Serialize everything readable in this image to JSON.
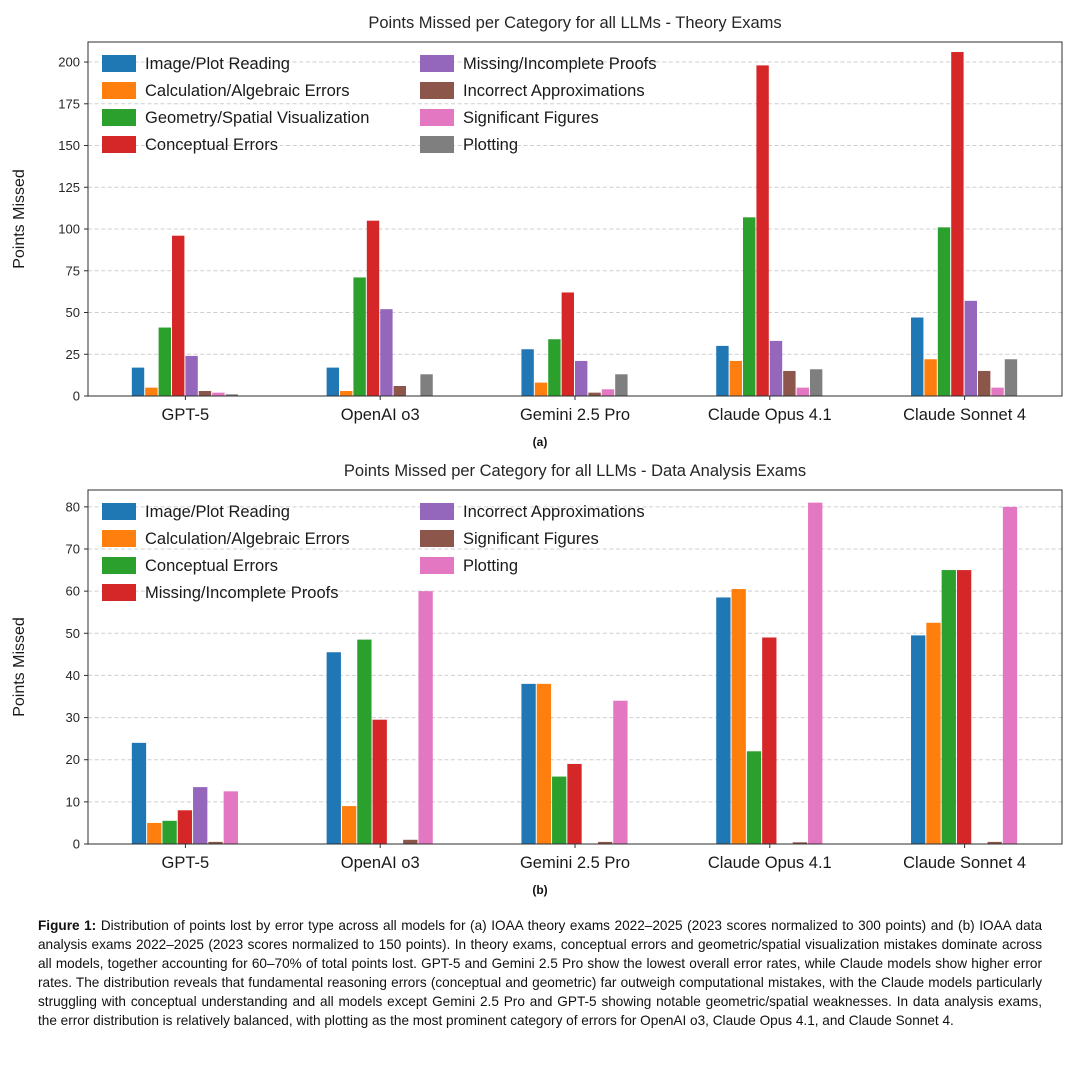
{
  "figure": {
    "caption_label": "Figure 1:",
    "caption_text": "Distribution of points lost by error type across all models for (a) IOAA theory exams 2022–2025 (2023 scores normalized to 300 points) and (b) IOAA data analysis exams 2022–2025 (2023 scores normalized to 150 points). In theory exams, conceptual errors and geometric/spatial visualization mistakes dominate across all models, together accounting for 60–70% of total points lost. GPT-5 and Gemini 2.5 Pro show the lowest overall error rates, while Claude models show higher error rates. The distribution reveals that fundamental reasoning errors (conceptual and geometric) far outweigh computational mistakes, with the Claude models particularly struggling with conceptual understanding and all models except Gemini 2.5 Pro and GPT-5 showing notable geometric/spatial weaknesses. In data analysis exams, the error distribution is relatively balanced, with plotting as the most prominent category of errors for OpenAI o3, Claude Opus 4.1, and Claude Sonnet 4.",
    "subfig_a": "(a)",
    "subfig_b": "(b)"
  },
  "chart_data": [
    {
      "id": "theory-exams",
      "type": "bar",
      "title": "Points Missed per Category for all LLMs - Theory Exams",
      "xlabel": "",
      "ylabel": "Points Missed",
      "ylim": [
        0,
        212
      ],
      "yticks": [
        0,
        25,
        50,
        75,
        100,
        125,
        150,
        175,
        200
      ],
      "grid": "dashed-horizontal",
      "legend_position": "upper-left",
      "legend_columns": 2,
      "categories": [
        "GPT-5",
        "OpenAI o3",
        "Gemini 2.5 Pro",
        "Claude Opus 4.1",
        "Claude Sonnet 4"
      ],
      "series": [
        {
          "name": "Image/Plot Reading",
          "color": "#1f77b4",
          "values": [
            17,
            17,
            28,
            30,
            47
          ]
        },
        {
          "name": "Calculation/Algebraic Errors",
          "color": "#ff7f0e",
          "values": [
            5,
            3,
            8,
            21,
            22
          ]
        },
        {
          "name": "Geometry/Spatial Visualization",
          "color": "#2ca02c",
          "values": [
            41,
            71,
            34,
            107,
            101
          ]
        },
        {
          "name": "Conceptual Errors",
          "color": "#d62728",
          "values": [
            96,
            105,
            62,
            198,
            206
          ]
        },
        {
          "name": "Missing/Incomplete Proofs",
          "color": "#9467bd",
          "values": [
            24,
            52,
            21,
            33,
            57
          ]
        },
        {
          "name": "Incorrect Approximations",
          "color": "#8c564b",
          "values": [
            3,
            6,
            2,
            15,
            15
          ]
        },
        {
          "name": "Significant Figures",
          "color": "#e377c2",
          "values": [
            2,
            0,
            4,
            5,
            5
          ]
        },
        {
          "name": "Plotting",
          "color": "#7f7f7f",
          "values": [
            1,
            13,
            13,
            16,
            22
          ]
        }
      ]
    },
    {
      "id": "data-analysis-exams",
      "type": "bar",
      "title": "Points Missed per Category for all LLMs - Data Analysis Exams",
      "xlabel": "",
      "ylabel": "Points Missed",
      "ylim": [
        0,
        84
      ],
      "yticks": [
        0,
        10,
        20,
        30,
        40,
        50,
        60,
        70,
        80
      ],
      "grid": "dashed-horizontal",
      "legend_position": "upper-left",
      "legend_columns": 2,
      "categories": [
        "GPT-5",
        "OpenAI o3",
        "Gemini 2.5 Pro",
        "Claude Opus 4.1",
        "Claude Sonnet 4"
      ],
      "series": [
        {
          "name": "Image/Plot Reading",
          "color": "#1f77b4",
          "values": [
            24,
            45.5,
            38,
            58.5,
            49.5
          ]
        },
        {
          "name": "Calculation/Algebraic Errors",
          "color": "#ff7f0e",
          "values": [
            5,
            9,
            38,
            60.5,
            52.5
          ]
        },
        {
          "name": "Conceptual Errors",
          "color": "#2ca02c",
          "values": [
            5.5,
            48.5,
            16,
            22,
            65
          ]
        },
        {
          "name": "Missing/Incomplete Proofs",
          "color": "#d62728",
          "values": [
            8,
            29.5,
            19,
            49,
            65
          ]
        },
        {
          "name": "Incorrect Approximations",
          "color": "#9467bd",
          "values": [
            13.5,
            0,
            0,
            0,
            0
          ]
        },
        {
          "name": "Significant Figures",
          "color": "#8c564b",
          "values": [
            0.5,
            1,
            0.5,
            0.4,
            0.5
          ]
        },
        {
          "name": "Plotting",
          "color": "#e377c2",
          "values": [
            12.5,
            60,
            34,
            81,
            80
          ]
        }
      ]
    }
  ]
}
